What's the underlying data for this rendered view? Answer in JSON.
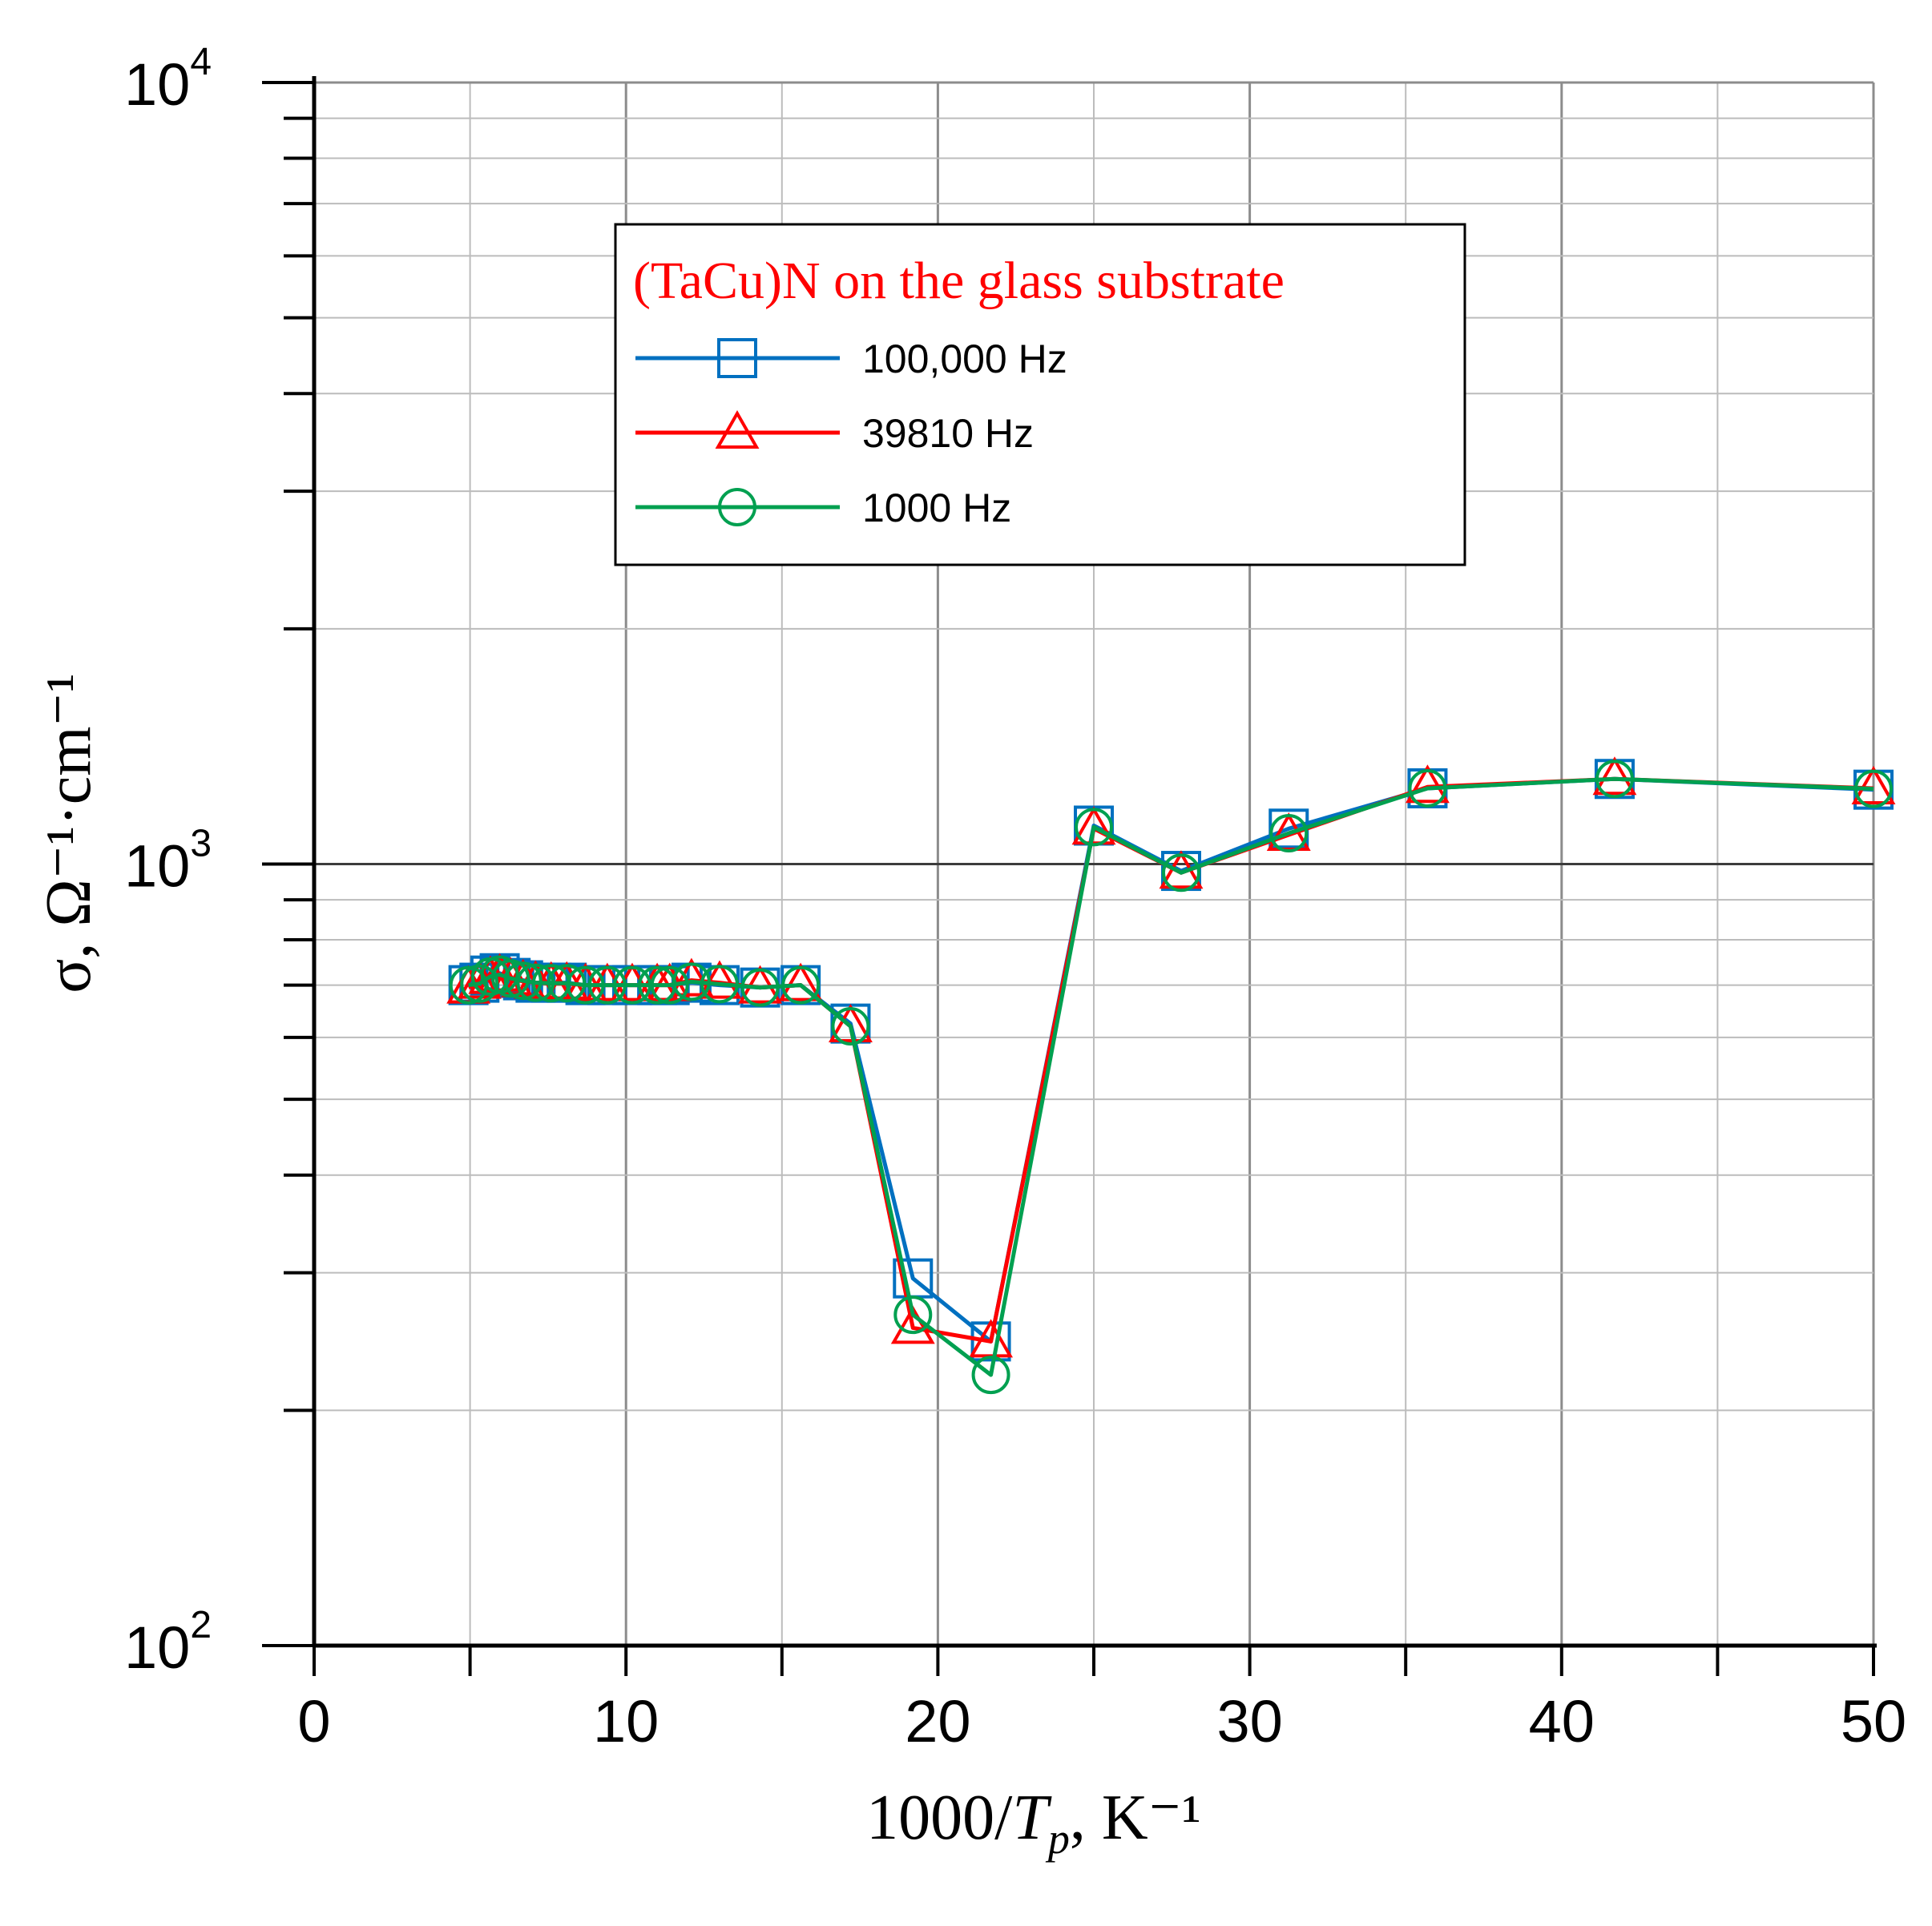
{
  "chart_data": {
    "type": "line",
    "title": "",
    "xlabel": "1000/Tp, K⁻¹",
    "xlabel_parts": {
      "prefix": "1000/",
      "var": "T",
      "sub": "p",
      "suffix": ", K⁻¹"
    },
    "ylabel": "σ, Ω⁻¹·cm⁻¹",
    "xlim": [
      0,
      50
    ],
    "ylim": [
      100,
      10000
    ],
    "yscale": "log",
    "grid": true,
    "x_ticks": [
      "0",
      "10",
      "20",
      "30",
      "40",
      "50"
    ],
    "y_ticks": [
      {
        "value": 100,
        "base": "10",
        "exp": "2"
      },
      {
        "value": 1000,
        "base": "10",
        "exp": "3"
      },
      {
        "value": 10000,
        "base": "10",
        "exp": "4"
      }
    ],
    "legend": {
      "position": "upper-center",
      "title": "(TaCu)N on the glass substrate",
      "title_color": "#ff0000"
    },
    "series": [
      {
        "name": "100,000 Hz",
        "color": "#0070c0",
        "marker": "square",
        "x": [
          4.95,
          5.3,
          5.65,
          5.95,
          6.3,
          6.7,
          7.1,
          7.6,
          8.1,
          8.7,
          9.4,
          10.2,
          11.0,
          11.4,
          12.1,
          13.0,
          14.3,
          15.6,
          17.2,
          19.2,
          21.7,
          25.0,
          27.8,
          31.25,
          35.7,
          41.7,
          50.0
        ],
        "y": [
          700,
          705,
          720,
          725,
          715,
          710,
          705,
          705,
          705,
          700,
          700,
          700,
          700,
          700,
          705,
          700,
          695,
          700,
          625,
          295,
          245,
          1120,
          980,
          1110,
          1250,
          1285,
          1245
        ]
      },
      {
        "name": "39810 Hz",
        "color": "#ff0000",
        "marker": "triangle",
        "x": [
          4.95,
          5.3,
          5.65,
          5.95,
          6.3,
          6.7,
          7.1,
          7.6,
          8.1,
          8.7,
          9.4,
          10.2,
          11.0,
          11.4,
          12.1,
          13.0,
          14.3,
          15.6,
          17.2,
          19.2,
          21.7,
          25.0,
          27.8,
          31.25,
          35.7,
          41.7,
          50.0
        ],
        "y": [
          695,
          705,
          715,
          720,
          712,
          708,
          705,
          703,
          703,
          700,
          700,
          700,
          700,
          700,
          710,
          705,
          695,
          700,
          620,
          255,
          245,
          1110,
          975,
          1090,
          1255,
          1285,
          1250
        ]
      },
      {
        "name": "1000 Hz",
        "color": "#00a050",
        "marker": "circle",
        "x": [
          4.95,
          5.3,
          5.65,
          5.95,
          6.3,
          6.7,
          7.1,
          7.6,
          8.1,
          8.7,
          9.4,
          10.2,
          11.0,
          11.4,
          12.1,
          13.0,
          14.3,
          15.6,
          17.2,
          19.2,
          21.7,
          25.0,
          27.8,
          31.25,
          35.7,
          41.7,
          50.0
        ],
        "y": [
          700,
          703,
          718,
          722,
          714,
          709,
          705,
          704,
          704,
          700,
          700,
          700,
          700,
          700,
          707,
          702,
          695,
          700,
          620,
          265,
          222,
          1115,
          975,
          1095,
          1250,
          1285,
          1248
        ]
      }
    ]
  }
}
